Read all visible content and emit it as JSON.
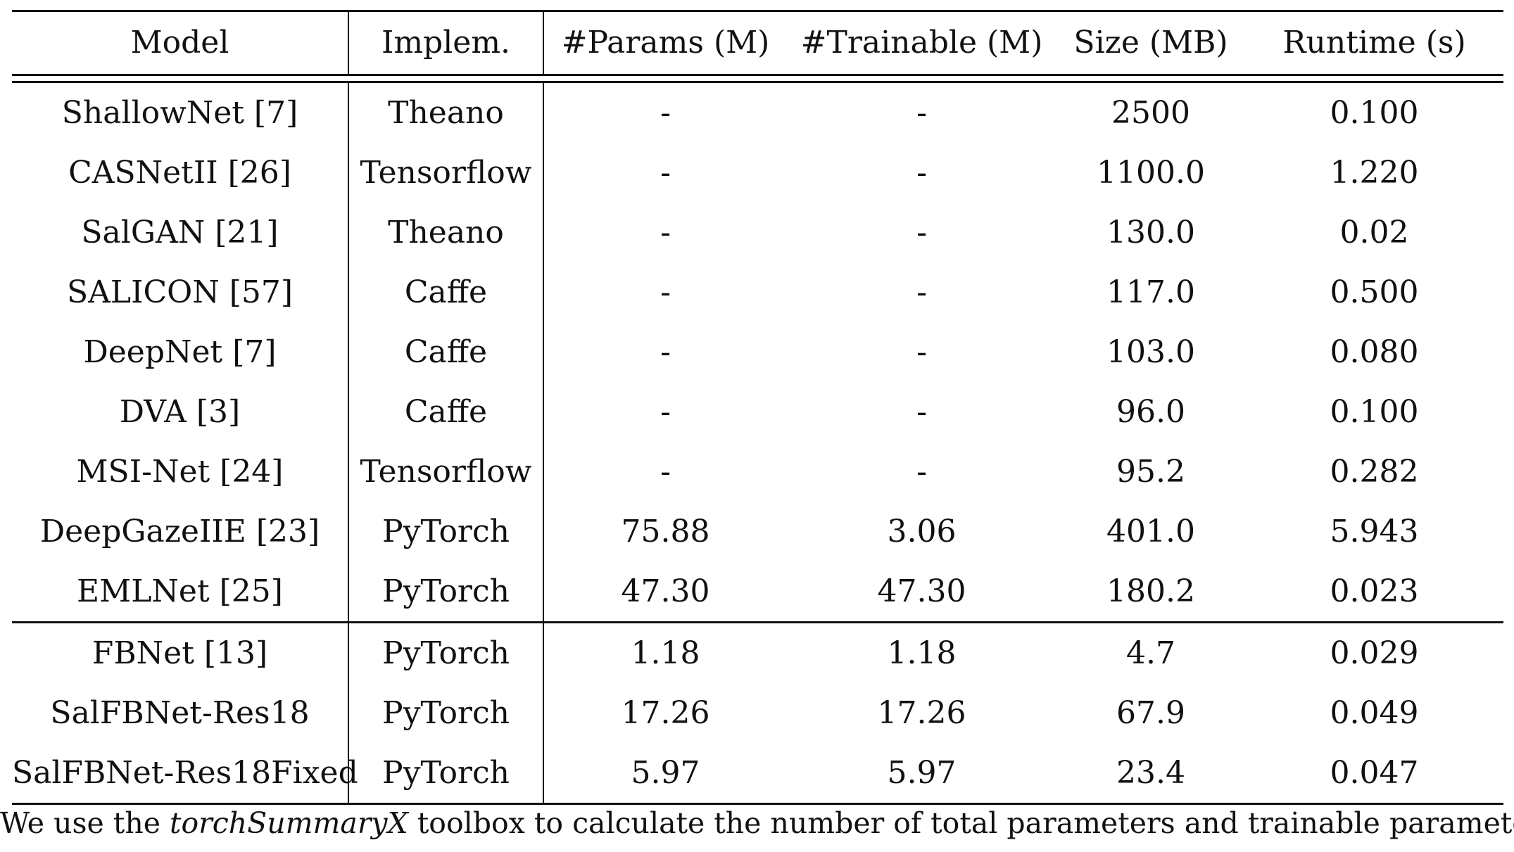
{
  "table": {
    "headers": [
      "Model",
      "Implem.",
      "#Params (M)",
      "#Trainable (M)",
      "Size (MB)",
      "Runtime (s)"
    ],
    "group1": [
      [
        "ShallowNet [7]",
        "Theano",
        "-",
        "-",
        "2500",
        "0.100"
      ],
      [
        "CASNetII [26]",
        "Tensorflow",
        "-",
        "-",
        "1100.0",
        "1.220"
      ],
      [
        "SalGAN [21]",
        "Theano",
        "-",
        "-",
        "130.0",
        "0.02"
      ],
      [
        "SALICON [57]",
        "Caffe",
        "-",
        "-",
        "117.0",
        "0.500"
      ],
      [
        "DeepNet [7]",
        "Caffe",
        "-",
        "-",
        "103.0",
        "0.080"
      ],
      [
        "DVA [3]",
        "Caffe",
        "-",
        "-",
        "96.0",
        "0.100"
      ],
      [
        "MSI-Net [24]",
        "Tensorflow",
        "-",
        "-",
        "95.2",
        "0.282"
      ],
      [
        "DeepGazeIIE [23]",
        "PyTorch",
        "75.88",
        "3.06",
        "401.0",
        "5.943"
      ],
      [
        "EMLNet [25]",
        "PyTorch",
        "47.30",
        "47.30",
        "180.2",
        "0.023"
      ]
    ],
    "group2": [
      [
        "FBNet [13]",
        "PyTorch",
        "1.18",
        "1.18",
        "4.7",
        "0.029"
      ],
      [
        "SalFBNet-Res18",
        "PyTorch",
        "17.26",
        "17.26",
        "67.9",
        "0.049"
      ],
      [
        "SalFBNet-Res18Fixed",
        "PyTorch",
        "5.97",
        "5.97",
        "23.4",
        "0.047"
      ]
    ]
  },
  "caption": {
    "before": "We use the ",
    "tool": "torchSummaryX",
    "after": " toolbox to calculate the number of total parameters and trainable parameters."
  }
}
